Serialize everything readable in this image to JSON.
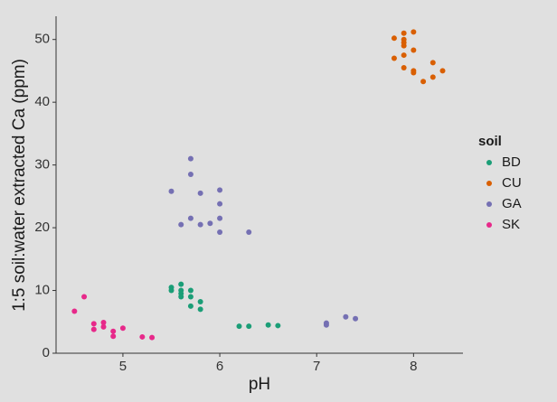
{
  "chart_data": {
    "type": "scatter",
    "x_label": "pH",
    "y_label": "1:5 soil:water extracted Ca (ppm)",
    "legend_title": "soil",
    "legend_position": "right",
    "xlim": [
      4.31,
      8.51
    ],
    "ylim": [
      0,
      53.7
    ],
    "xticks": [
      5,
      6,
      7,
      8
    ],
    "yticks": [
      0,
      10,
      20,
      30,
      40,
      50
    ],
    "series": [
      {
        "name": "BD",
        "color": "#1b9e77",
        "x": [
          5.5,
          5.5,
          5.6,
          5.6,
          5.6,
          5.6,
          5.7,
          5.7,
          5.7,
          5.8,
          5.8,
          6.2,
          6.3,
          6.5,
          6.6
        ],
        "y": [
          10.5,
          10,
          11,
          10,
          9.5,
          9,
          10,
          9,
          7.5,
          8.2,
          7,
          4.3,
          4.3,
          4.5,
          4.4
        ]
      },
      {
        "name": "CU",
        "color": "#d95f02",
        "x": [
          7.8,
          7.8,
          7.9,
          7.9,
          7.9,
          7.9,
          7.9,
          7.9,
          8,
          8,
          8,
          8,
          8.1,
          8.2,
          8.2,
          8.3
        ],
        "y": [
          50.2,
          47,
          51,
          50,
          49.5,
          49,
          47.5,
          45.5,
          51.2,
          48.3,
          45,
          44.7,
          43.3,
          46.3,
          44,
          45
        ]
      },
      {
        "name": "GA",
        "color": "#7570b3",
        "x": [
          5.5,
          5.6,
          5.7,
          5.7,
          5.7,
          5.8,
          5.8,
          5.9,
          6,
          6,
          6,
          6,
          6.3,
          7.1,
          7.1,
          7.3,
          7.4
        ],
        "y": [
          25.8,
          20.5,
          31,
          28.5,
          21.5,
          25.5,
          20.5,
          20.7,
          26,
          23.8,
          21.5,
          19.3,
          19.3,
          4.8,
          4.5,
          5.8,
          5.5
        ]
      },
      {
        "name": "SK",
        "color": "#e7298a",
        "x": [
          4.5,
          4.6,
          4.7,
          4.7,
          4.8,
          4.8,
          4.9,
          4.9,
          5,
          5.2,
          5.3
        ],
        "y": [
          6.7,
          9,
          4.7,
          3.8,
          4.9,
          4.2,
          3.5,
          2.7,
          4,
          2.6,
          2.5
        ]
      }
    ]
  }
}
